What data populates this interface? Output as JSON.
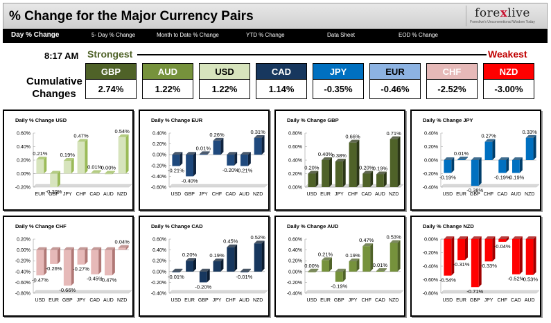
{
  "header": {
    "title": "% Change for the Major Currency Pairs"
  },
  "logo": {
    "part1": "fore",
    "part2": "x",
    "part3": "live",
    "tagline": "Forexlive's Unconventional Wisdom Today"
  },
  "nav": [
    "Day % Change",
    "5- Day % Change",
    "Month to Date % Change",
    "YTD % Change",
    "Data Sheet",
    "EOD % Change"
  ],
  "summary": {
    "time": "8:17 AM",
    "strongest": "Strongest",
    "weakest": "Weakest",
    "cumulative_label": "Cumulative Changes",
    "tiles": [
      {
        "code": "GBP",
        "value": "2.74%",
        "color": "#4f6228",
        "text_color": "#ffffff"
      },
      {
        "code": "AUD",
        "value": "1.22%",
        "color": "#76923c",
        "text_color": "#ffffff"
      },
      {
        "code": "USD",
        "value": "1.22%",
        "color": "#d7e4bd",
        "text_color": "#000000"
      },
      {
        "code": "CAD",
        "value": "1.14%",
        "color": "#17375e",
        "text_color": "#ffffff"
      },
      {
        "code": "JPY",
        "value": "-0.35%",
        "color": "#0070c0",
        "text_color": "#ffffff"
      },
      {
        "code": "EUR",
        "value": "-0.46%",
        "color": "#8db3e2",
        "text_color": "#000000"
      },
      {
        "code": "CHF",
        "value": "-2.52%",
        "color": "#e6b9b8",
        "text_color": "#ffffff"
      },
      {
        "code": "NZD",
        "value": "-3.00%",
        "color": "#ff0000",
        "text_color": "#ffffff"
      }
    ]
  },
  "chart_data": [
    {
      "type": "bar",
      "title": "Daily % Change USD",
      "categories": [
        "EUR",
        "GBP",
        "JPY",
        "CHF",
        "CAD",
        "AUD",
        "NZD"
      ],
      "values": [
        0.21,
        -0.2,
        0.19,
        0.47,
        0.01,
        0.0,
        0.54
      ],
      "labels": [
        "0.21%",
        "-0.20%",
        "0.19%",
        "0.47%",
        "0.01%",
        "0.00%",
        "0.54%"
      ],
      "ylim": [
        -0.2,
        0.6
      ],
      "ticks": [
        "0.60%",
        "0.40%",
        "0.20%",
        "0.00%",
        "-0.20%"
      ],
      "tick_values": [
        0.6,
        0.4,
        0.2,
        0,
        -0.2
      ],
      "color": "#d7e4bd",
      "dark": "#9bbb59"
    },
    {
      "type": "bar",
      "title": "Daily % Change EUR",
      "categories": [
        "USD",
        "GBP",
        "JPY",
        "CHF",
        "CAD",
        "AUD",
        "NZD"
      ],
      "values": [
        -0.21,
        -0.4,
        0.01,
        0.26,
        -0.2,
        -0.21,
        0.31
      ],
      "labels": [
        "-0.21%",
        "-0.40%",
        "0.01%",
        "0.26%",
        "-0.20%",
        "-0.21%",
        "0.31%"
      ],
      "ylim": [
        -0.6,
        0.4
      ],
      "ticks": [
        "0.40%",
        "0.20%",
        "0.00%",
        "-0.20%",
        "-0.40%",
        "-0.60%"
      ],
      "tick_values": [
        0.4,
        0.2,
        0,
        -0.2,
        -0.4,
        -0.6
      ],
      "color": "#1f497d",
      "dark": "#10243f"
    },
    {
      "type": "bar",
      "title": "Daily % Change GBP",
      "categories": [
        "USD",
        "EUR",
        "JPY",
        "CHF",
        "CAD",
        "AUD",
        "NZD"
      ],
      "values": [
        0.2,
        0.4,
        0.38,
        0.66,
        0.2,
        0.19,
        0.71
      ],
      "labels": [
        "0.20%",
        "0.40%",
        "0.38%",
        "0.66%",
        "0.20%",
        "0.19%",
        "0.71%"
      ],
      "ylim": [
        0,
        0.8
      ],
      "ticks": [
        "0.80%",
        "0.60%",
        "0.40%",
        "0.20%",
        "0.00%"
      ],
      "tick_values": [
        0.8,
        0.6,
        0.4,
        0.2,
        0
      ],
      "color": "#4f6228",
      "dark": "#2b3616"
    },
    {
      "type": "bar",
      "title": "Daily % Change JPY",
      "categories": [
        "USD",
        "EUR",
        "GBP",
        "CHF",
        "CAD",
        "AUD",
        "NZD"
      ],
      "values": [
        -0.19,
        0.01,
        -0.38,
        0.27,
        -0.19,
        -0.19,
        0.33
      ],
      "labels": [
        "-0.19%",
        "0.01%",
        "-0.38%",
        "0.27%",
        "-0.19%",
        "-0.19%",
        "0.33%"
      ],
      "ylim": [
        -0.4,
        0.4
      ],
      "ticks": [
        "0.40%",
        "0.20%",
        "0.00%",
        "-0.20%",
        "-0.40%"
      ],
      "tick_values": [
        0.4,
        0.2,
        0,
        -0.2,
        -0.4
      ],
      "color": "#0070c0",
      "dark": "#003e6b"
    },
    {
      "type": "bar",
      "title": "Daily % Change CHF",
      "categories": [
        "USD",
        "EUR",
        "GBP",
        "JPY",
        "CAD",
        "AUD",
        "NZD"
      ],
      "values": [
        -0.47,
        -0.26,
        -0.66,
        -0.27,
        -0.45,
        -0.47,
        0.04
      ],
      "labels": [
        "-0.47%",
        "-0.26%",
        "-0.66%",
        "-0.27%",
        "-0.45%",
        "-0.47%",
        "0.04%"
      ],
      "ylim": [
        -0.8,
        0.2
      ],
      "ticks": [
        "0.20%",
        "0.00%",
        "-0.20%",
        "-0.40%",
        "-0.60%",
        "-0.80%"
      ],
      "tick_values": [
        0.2,
        0,
        -0.2,
        -0.4,
        -0.6,
        -0.8
      ],
      "color": "#e6b9b8",
      "dark": "#b07876"
    },
    {
      "type": "bar",
      "title": "Daily % Change CAD",
      "categories": [
        "USD",
        "EUR",
        "GBP",
        "JPY",
        "CHF",
        "AUD",
        "NZD"
      ],
      "values": [
        -0.01,
        0.2,
        -0.2,
        0.19,
        0.45,
        -0.01,
        0.52
      ],
      "labels": [
        "-0.01%",
        "0.20%",
        "-0.20%",
        "0.19%",
        "0.45%",
        "-0.01%",
        "0.52%"
      ],
      "ylim": [
        -0.4,
        0.6
      ],
      "ticks": [
        "0.60%",
        "0.40%",
        "0.20%",
        "0.00%",
        "-0.20%",
        "-0.40%"
      ],
      "tick_values": [
        0.6,
        0.4,
        0.2,
        0,
        -0.2,
        -0.4
      ],
      "color": "#17375e",
      "dark": "#0b1c30"
    },
    {
      "type": "bar",
      "title": "Daily % Change AUD",
      "categories": [
        "USD",
        "EUR",
        "GBP",
        "JPY",
        "CHF",
        "CAD",
        "NZD"
      ],
      "values": [
        0.0,
        0.21,
        -0.19,
        0.19,
        0.47,
        0.01,
        0.53
      ],
      "labels": [
        "0.00%",
        "0.21%",
        "-0.19%",
        "0.19%",
        "0.47%",
        "0.01%",
        "0.53%"
      ],
      "ylim": [
        -0.4,
        0.6
      ],
      "ticks": [
        "0.60%",
        "0.40%",
        "0.20%",
        "0.00%",
        "-0.20%",
        "-0.40%"
      ],
      "tick_values": [
        0.6,
        0.4,
        0.2,
        0,
        -0.2,
        -0.4
      ],
      "color": "#76923c",
      "dark": "#4f6228"
    },
    {
      "type": "bar",
      "title": "Daily % Change NZD",
      "categories": [
        "USD",
        "EUR",
        "GBP",
        "JPY",
        "CHF",
        "CAD",
        "AUD"
      ],
      "values": [
        -0.54,
        -0.31,
        -0.71,
        -0.33,
        -0.04,
        -0.52,
        -0.53
      ],
      "labels": [
        "-0.54%",
        "-0.31%",
        "-0.71%",
        "-0.33%",
        "-0.04%",
        "-0.52%",
        "-0.53%"
      ],
      "ylim": [
        -0.8,
        0.0
      ],
      "ticks": [
        "0.00%",
        "-0.20%",
        "-0.40%",
        "-0.60%",
        "-0.80%"
      ],
      "tick_values": [
        0,
        -0.2,
        -0.4,
        -0.6,
        -0.8
      ],
      "color": "#ff0000",
      "dark": "#a00000"
    }
  ]
}
